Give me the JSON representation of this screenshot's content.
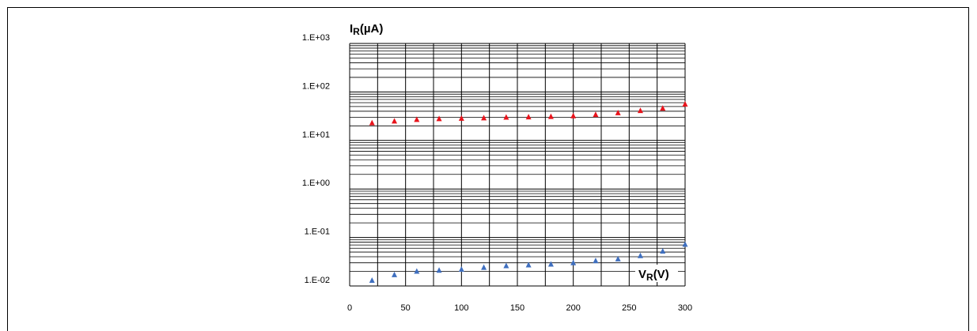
{
  "chart_data": {
    "type": "scatter",
    "title": "",
    "ylabel_main": "I",
    "ylabel_sub": "R",
    "ylabel_unit": "(µA)",
    "xlabel_main": "V",
    "xlabel_sub": "R",
    "xlabel_unit": "(V)",
    "y_scale": "log",
    "ylim": [
      0.01,
      1000
    ],
    "xlim": [
      0,
      300
    ],
    "grid": true,
    "x_ticks": [
      0,
      50,
      100,
      150,
      200,
      250,
      300
    ],
    "x_tick_labels": [
      "0",
      "50",
      "100",
      "150",
      "200",
      "250",
      "300"
    ],
    "y_ticks": [
      0.01,
      0.1,
      1,
      10,
      100,
      1000
    ],
    "y_tick_labels": [
      "1.E-02",
      "1.E-01",
      "1.E+00",
      "1.E+01",
      "1.E+02",
      "1.E+03"
    ],
    "series": [
      {
        "color": "#e8141c",
        "marker": "triangle",
        "x": [
          20,
          40,
          60,
          80,
          100,
          120,
          140,
          160,
          180,
          200,
          220,
          240,
          260,
          280,
          300
        ],
        "y": [
          23,
          25,
          27,
          28,
          28.5,
          29,
          30,
          30.5,
          31,
          32,
          34,
          37,
          41,
          46,
          56
        ]
      },
      {
        "color": "#3f6fbf",
        "marker": "triangle",
        "x": [
          20,
          40,
          60,
          80,
          100,
          120,
          140,
          160,
          180,
          200,
          220,
          240,
          260,
          280,
          300
        ],
        "y": [
          0.013,
          0.017,
          0.02,
          0.021,
          0.022,
          0.024,
          0.026,
          0.027,
          0.028,
          0.03,
          0.033,
          0.036,
          0.042,
          0.052,
          0.072
        ]
      }
    ]
  }
}
